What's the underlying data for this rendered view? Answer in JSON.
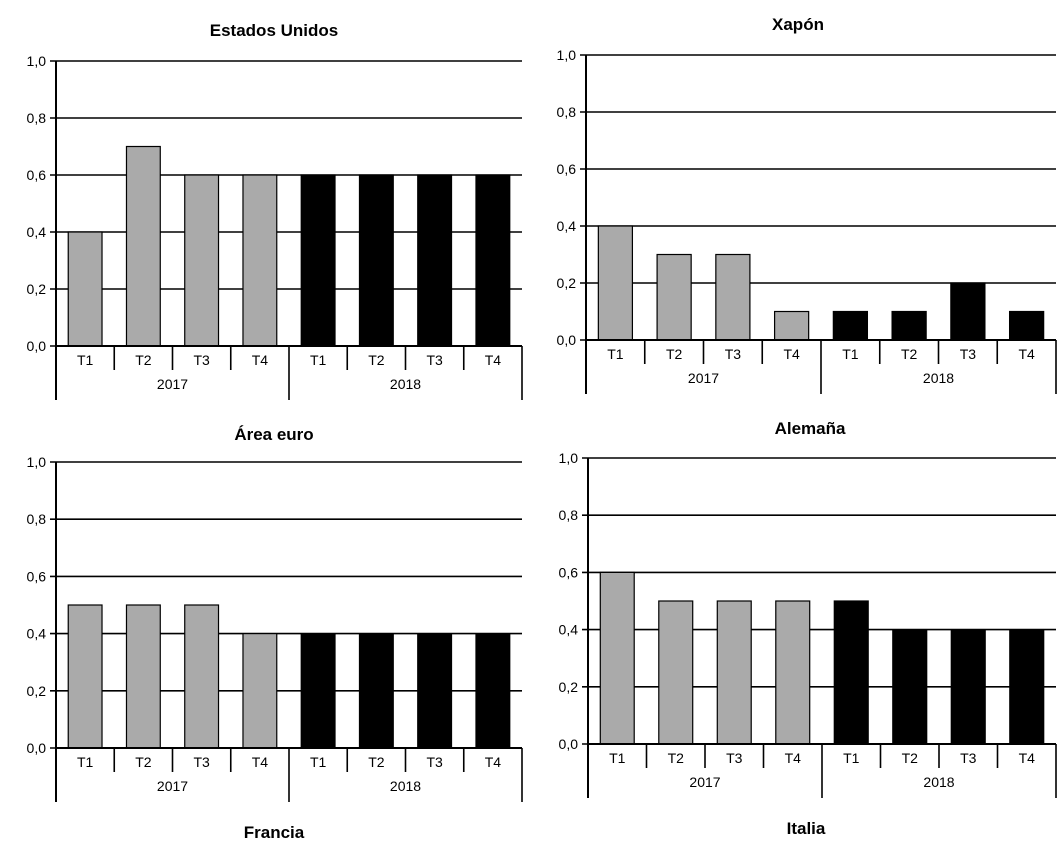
{
  "chart_data": [
    {
      "type": "bar",
      "title": "Estados Unidos",
      "categories": [
        "T1",
        "T2",
        "T3",
        "T4",
        "T1",
        "T2",
        "T3",
        "T4"
      ],
      "groups": [
        "2017",
        "2018"
      ],
      "values": [
        0.4,
        0.7,
        0.6,
        0.6,
        0.6,
        0.6,
        0.6,
        0.6
      ],
      "bar_colors": [
        "#aaaaaa",
        "#aaaaaa",
        "#aaaaaa",
        "#aaaaaa",
        "#000000",
        "#000000",
        "#000000",
        "#000000"
      ],
      "ylim": [
        0,
        1.0
      ],
      "yticks": [
        "0,0",
        "0,2",
        "0,4",
        "0,6",
        "0,8",
        "1,0"
      ],
      "grid": true
    },
    {
      "type": "bar",
      "title": "Xapón",
      "categories": [
        "T1",
        "T2",
        "T3",
        "T4",
        "T1",
        "T2",
        "T3",
        "T4"
      ],
      "groups": [
        "2017",
        "2018"
      ],
      "values": [
        0.4,
        0.3,
        0.3,
        0.1,
        0.1,
        0.1,
        0.2,
        0.1
      ],
      "bar_colors": [
        "#aaaaaa",
        "#aaaaaa",
        "#aaaaaa",
        "#aaaaaa",
        "#000000",
        "#000000",
        "#000000",
        "#000000"
      ],
      "ylim": [
        0,
        1.0
      ],
      "yticks": [
        "0,0",
        "0,2",
        "0,4",
        "0,6",
        "0,8",
        "1,0"
      ],
      "grid": true
    },
    {
      "type": "bar",
      "title": "Área euro",
      "categories": [
        "T1",
        "T2",
        "T3",
        "T4",
        "T1",
        "T2",
        "T3",
        "T4"
      ],
      "groups": [
        "2017",
        "2018"
      ],
      "values": [
        0.5,
        0.5,
        0.5,
        0.4,
        0.4,
        0.4,
        0.4,
        0.4
      ],
      "bar_colors": [
        "#aaaaaa",
        "#aaaaaa",
        "#aaaaaa",
        "#aaaaaa",
        "#000000",
        "#000000",
        "#000000",
        "#000000"
      ],
      "ylim": [
        0,
        1.0
      ],
      "yticks": [
        "0,0",
        "0,2",
        "0,4",
        "0,6",
        "0,8",
        "1,0"
      ],
      "grid": true
    },
    {
      "type": "bar",
      "title": "Alemaña",
      "categories": [
        "T1",
        "T2",
        "T3",
        "T4",
        "T1",
        "T2",
        "T3",
        "T4"
      ],
      "groups": [
        "2017",
        "2018"
      ],
      "values": [
        0.6,
        0.5,
        0.5,
        0.5,
        0.5,
        0.4,
        0.4,
        0.4
      ],
      "bar_colors": [
        "#aaaaaa",
        "#aaaaaa",
        "#aaaaaa",
        "#aaaaaa",
        "#000000",
        "#000000",
        "#000000",
        "#000000"
      ],
      "ylim": [
        0,
        1.0
      ],
      "yticks": [
        "0,0",
        "0,2",
        "0,4",
        "0,6",
        "0,8",
        "1,0"
      ],
      "grid": true
    },
    {
      "type": "bar",
      "title": "Francia"
    },
    {
      "type": "bar",
      "title": "Italia"
    }
  ]
}
